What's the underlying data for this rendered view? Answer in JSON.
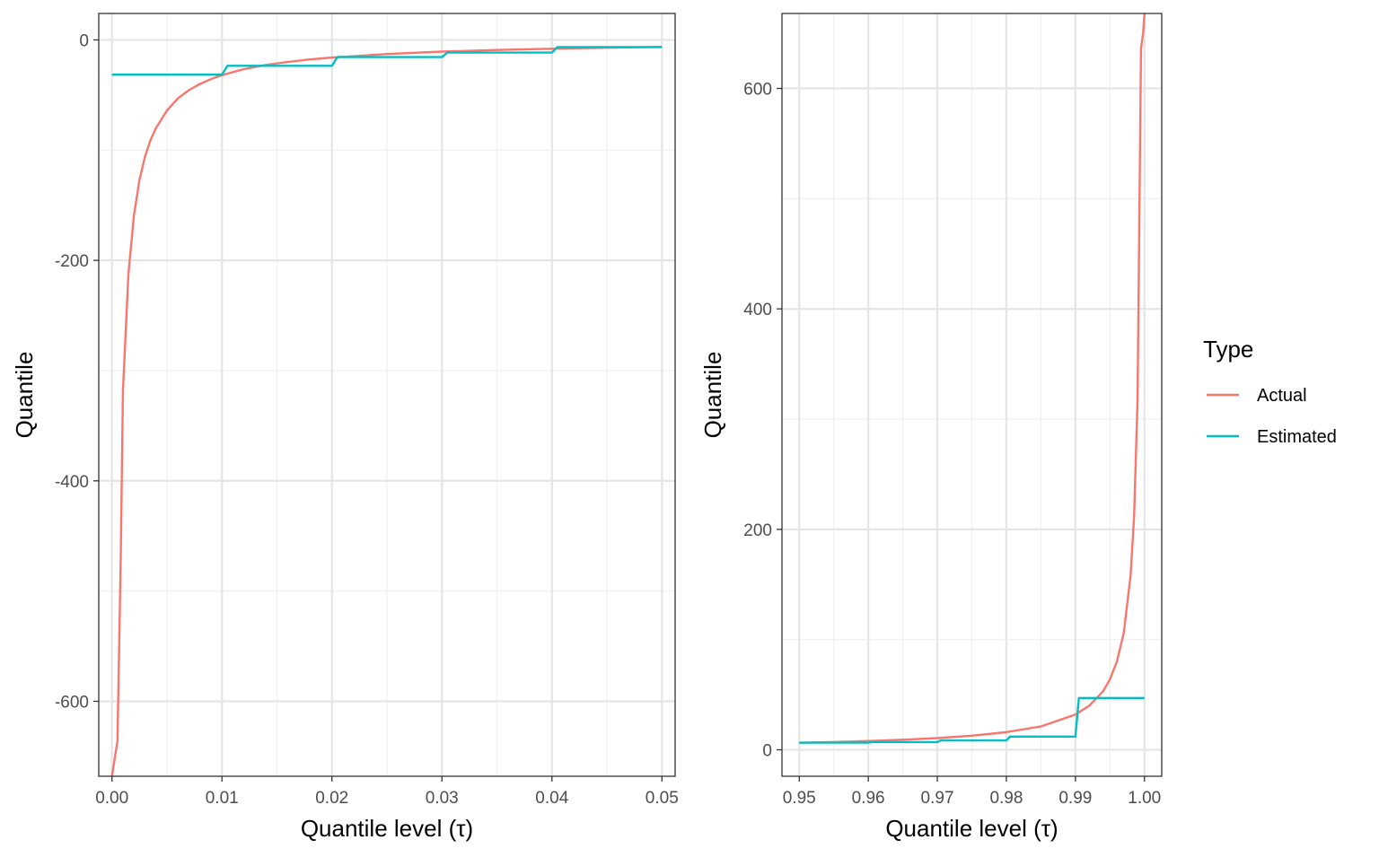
{
  "legend": {
    "title": "Type",
    "placement": "right",
    "entries": [
      {
        "label": "Actual",
        "color": "#F8766D"
      },
      {
        "label": "Estimated",
        "color": "#00BFC4"
      }
    ]
  },
  "chart_data": [
    {
      "type": "line",
      "xlabel": "Quantile level (τ)",
      "ylabel": "Quantile",
      "xlim": [
        -0.0012,
        0.0512
      ],
      "ylim": [
        -668,
        24
      ],
      "grid": true,
      "xticks": [
        0.0,
        0.01,
        0.02,
        0.03,
        0.04,
        0.05
      ],
      "xtick_labels": [
        "0.00",
        "0.01",
        "0.02",
        "0.03",
        "0.04",
        "0.05"
      ],
      "yticks": [
        -600,
        -400,
        -200,
        0
      ],
      "ytick_labels": [
        "-600",
        "-400",
        "-200",
        "0"
      ],
      "series": [
        {
          "name": "Actual",
          "color": "#F8766D",
          "x": [
            0.0,
            0.0005,
            0.0008,
            0.001,
            0.0015,
            0.002,
            0.0025,
            0.003,
            0.0035,
            0.004,
            0.005,
            0.006,
            0.007,
            0.008,
            0.009,
            0.01,
            0.012,
            0.014,
            0.016,
            0.018,
            0.02,
            0.025,
            0.03,
            0.035,
            0.04,
            0.045,
            0.05
          ],
          "y": [
            -668,
            -636,
            -470,
            -318,
            -212,
            -159,
            -127,
            -106,
            -91,
            -80,
            -64,
            -53,
            -45.5,
            -40,
            -35.5,
            -32,
            -26.5,
            -22.7,
            -20,
            -17.7,
            -16,
            -12.8,
            -10.6,
            -9.1,
            -8,
            -7.1,
            -6.4
          ]
        },
        {
          "name": "Estimated",
          "color": "#00BFC4",
          "x": [
            0.0,
            0.01,
            0.0105,
            0.02,
            0.0205,
            0.03,
            0.0305,
            0.04,
            0.0405,
            0.05
          ],
          "y": [
            -31.5,
            -31.5,
            -23.5,
            -23.5,
            -15.5,
            -15.5,
            -11.5,
            -11.5,
            -6.5,
            -6.5
          ]
        }
      ]
    },
    {
      "type": "line",
      "xlabel": "Quantile level (τ)",
      "ylabel": "Quantile",
      "xlim": [
        0.9475,
        1.0025
      ],
      "ylim": [
        -24,
        668
      ],
      "grid": true,
      "xticks": [
        0.95,
        0.96,
        0.97,
        0.98,
        0.99,
        1.0
      ],
      "xtick_labels": [
        "0.95",
        "0.96",
        "0.97",
        "0.98",
        "0.99",
        "1.00"
      ],
      "yticks": [
        0,
        200,
        400,
        600
      ],
      "ytick_labels": [
        "0",
        "200",
        "400",
        "600"
      ],
      "series": [
        {
          "name": "Actual",
          "color": "#F8766D",
          "x": [
            0.95,
            0.955,
            0.96,
            0.965,
            0.97,
            0.975,
            0.98,
            0.985,
            0.99,
            0.992,
            0.994,
            0.995,
            0.996,
            0.997,
            0.998,
            0.9985,
            0.999,
            0.9995,
            0.9998,
            1.0
          ],
          "y": [
            6.4,
            7.1,
            8,
            9.1,
            10.6,
            12.8,
            16,
            21.2,
            32,
            40,
            53,
            64,
            80,
            106,
            159,
            212,
            318,
            636,
            650,
            668
          ]
        },
        {
          "name": "Estimated",
          "color": "#00BFC4",
          "x": [
            0.95,
            0.96,
            0.9605,
            0.97,
            0.9705,
            0.98,
            0.9805,
            0.99,
            0.9905,
            1.0
          ],
          "y": [
            6.5,
            6.5,
            7,
            7,
            8.5,
            8.5,
            12,
            12,
            47,
            47
          ]
        }
      ]
    }
  ]
}
